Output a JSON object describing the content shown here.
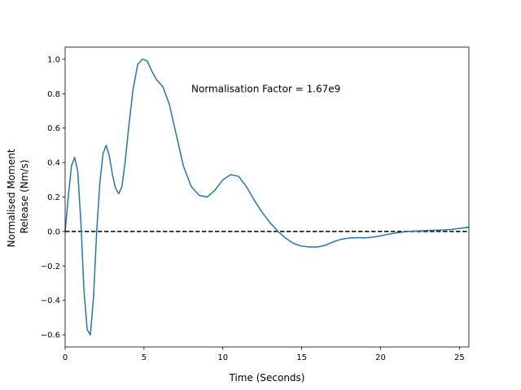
{
  "chart_data": {
    "type": "line",
    "xlabel": "Time (Seconds)",
    "ylabel_lines": [
      "Normalised Moment",
      "Release (Nm/s)"
    ],
    "xlim": [
      0,
      25.6
    ],
    "ylim": [
      -0.67,
      1.07
    ],
    "xticks": [
      0,
      5,
      10,
      15,
      20,
      25
    ],
    "yticks": [
      -0.6,
      -0.4,
      -0.2,
      0.0,
      0.2,
      0.4,
      0.6,
      0.8,
      1.0
    ],
    "xtick_labels": [
      "0",
      "5",
      "10",
      "15",
      "20",
      "25"
    ],
    "ytick_labels": [
      "−0.6",
      "−0.4",
      "−0.2",
      "0.0",
      "0.2",
      "0.4",
      "0.6",
      "0.8",
      "1.0"
    ],
    "annotation": {
      "text": "Normalisation Factor = 1.67e9",
      "x": 8.0,
      "y": 0.8
    },
    "reference_line": {
      "y": 0.0,
      "style": "dashed",
      "color": "#000000"
    },
    "grid": false,
    "series": [
      {
        "color": "#1f77b4",
        "x": [
          0,
          0.2,
          0.4,
          0.6,
          0.8,
          1.0,
          1.2,
          1.4,
          1.6,
          1.8,
          2.0,
          2.2,
          2.4,
          2.6,
          2.8,
          3.0,
          3.2,
          3.4,
          3.6,
          3.8,
          4.0,
          4.3,
          4.6,
          4.9,
          5.2,
          5.5,
          5.8,
          6.2,
          6.6,
          7.0,
          7.5,
          8.0,
          8.5,
          9.0,
          9.5,
          10.0,
          10.5,
          11.0,
          11.5,
          12.0,
          12.5,
          13.0,
          13.5,
          14.0,
          14.5,
          15.0,
          15.5,
          16.0,
          16.5,
          17.0,
          17.5,
          18.0,
          18.5,
          19.0,
          19.5,
          20.0,
          20.5,
          21.0,
          21.5,
          22.0,
          22.5,
          23.0,
          23.5,
          24.0,
          24.5,
          25.0,
          25.6
        ],
        "y": [
          0.0,
          0.2,
          0.38,
          0.43,
          0.35,
          0.05,
          -0.35,
          -0.57,
          -0.6,
          -0.38,
          0.0,
          0.28,
          0.45,
          0.5,
          0.44,
          0.33,
          0.25,
          0.22,
          0.26,
          0.4,
          0.58,
          0.82,
          0.97,
          1.0,
          0.99,
          0.93,
          0.88,
          0.84,
          0.74,
          0.58,
          0.38,
          0.26,
          0.21,
          0.2,
          0.24,
          0.3,
          0.33,
          0.32,
          0.26,
          0.18,
          0.11,
          0.05,
          0.0,
          -0.04,
          -0.07,
          -0.085,
          -0.09,
          -0.09,
          -0.08,
          -0.06,
          -0.045,
          -0.038,
          -0.036,
          -0.037,
          -0.033,
          -0.025,
          -0.016,
          -0.008,
          -0.002,
          0.002,
          0.004,
          0.006,
          0.007,
          0.009,
          0.012,
          0.018,
          0.025
        ]
      }
    ]
  }
}
